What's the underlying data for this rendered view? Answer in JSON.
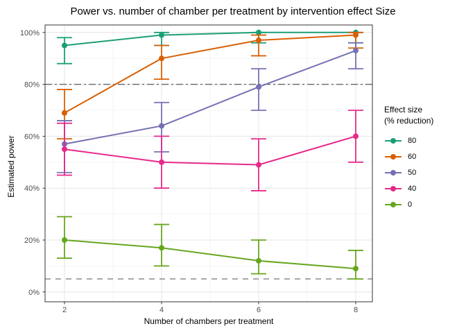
{
  "chart_data": {
    "type": "line",
    "title": "Power vs. number of chamber per treatment by intervention effect Size",
    "xlabel": "Number of chambers per treatment",
    "ylabel": "Estimated power",
    "legend_title_lines": [
      "Effect size",
      "(% reduction)"
    ],
    "legend_position": "right",
    "x": [
      2,
      4,
      6,
      8
    ],
    "axes": {
      "x_labels": [
        "2",
        "4",
        "6",
        "8"
      ],
      "x_minor": [
        3,
        5,
        7
      ],
      "y_major": {
        "values": [
          0,
          20,
          40,
          60,
          80,
          100
        ],
        "labels": [
          "0%",
          "20%",
          "40%",
          "60%",
          "80%",
          "100%"
        ]
      },
      "y_minor": [
        10,
        30,
        50,
        70,
        90
      ],
      "ylim": [
        0,
        100
      ],
      "grid": "major+minor"
    },
    "series": [
      {
        "name": "80",
        "color": "#1B9E77",
        "values": [
          95,
          99,
          100,
          100
        ],
        "lower": [
          88,
          95,
          96,
          96
        ],
        "upper": [
          98,
          100,
          100,
          100
        ]
      },
      {
        "name": "60",
        "color": "#D95F02",
        "values": [
          69,
          90,
          97,
          99
        ],
        "lower": [
          59,
          82,
          91,
          94
        ],
        "upper": [
          78,
          95,
          99,
          100
        ]
      },
      {
        "name": "50",
        "color": "#7570B3",
        "values": [
          57,
          64,
          79,
          93
        ],
        "lower": [
          46,
          54,
          70,
          86
        ],
        "upper": [
          66,
          73,
          86,
          96
        ]
      },
      {
        "name": "40",
        "color": "#E7298A",
        "values": [
          55,
          50,
          49,
          60
        ],
        "lower": [
          45,
          40,
          39,
          50
        ],
        "upper": [
          65,
          60,
          59,
          70
        ]
      },
      {
        "name": "0",
        "color": "#66A61E",
        "values": [
          20,
          17,
          12,
          9
        ],
        "lower": [
          13,
          10,
          7,
          5
        ],
        "upper": [
          29,
          26,
          20,
          16
        ]
      }
    ],
    "reference_lines": [
      {
        "y": 80,
        "style": "dash-dot",
        "color": "#666666"
      },
      {
        "y": 5,
        "style": "dashed",
        "color": "#808080"
      }
    ]
  }
}
